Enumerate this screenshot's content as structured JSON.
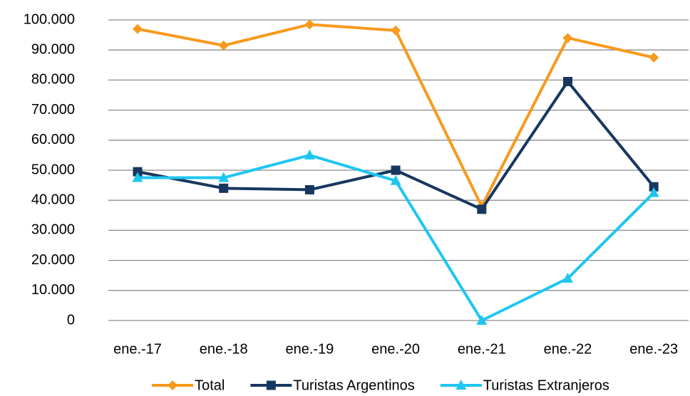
{
  "chart_data": {
    "type": "line",
    "categories": [
      "ene.-17",
      "ene.-18",
      "ene.-19",
      "ene.-20",
      "ene.-21",
      "ene.-22",
      "ene.-23"
    ],
    "series": [
      {
        "name": "Total",
        "color": "#f79a1d",
        "marker": "diamond",
        "values": [
          97000,
          91500,
          98500,
          96500,
          38000,
          94000,
          87500
        ]
      },
      {
        "name": "Turistas Argentinos",
        "color": "#17375e",
        "marker": "square",
        "values": [
          49500,
          44000,
          43500,
          50000,
          37000,
          79500,
          44500
        ]
      },
      {
        "name": "Turistas Extranjeros",
        "color": "#1fc6f0",
        "marker": "triangle",
        "values": [
          47500,
          47500,
          55000,
          46500,
          0,
          14000,
          42500
        ]
      }
    ],
    "ylim": [
      0,
      100000
    ],
    "yticks": [
      0,
      {
        "value": 10000,
        "label": "10.000"
      },
      {
        "value": 20000,
        "label": "20.000"
      },
      {
        "value": 30000,
        "label": "30.000"
      },
      {
        "value": 40000,
        "label": "40.000"
      },
      {
        "value": 50000,
        "label": "50.000"
      },
      {
        "value": 60000,
        "label": "60.000"
      },
      {
        "value": 70000,
        "label": "70.000"
      },
      {
        "value": 80000,
        "label": "80.000"
      },
      {
        "value": 90000,
        "label": "90.000"
      },
      {
        "value": 100000,
        "label": "100.000"
      }
    ],
    "grid": true,
    "legend": "bottom"
  }
}
